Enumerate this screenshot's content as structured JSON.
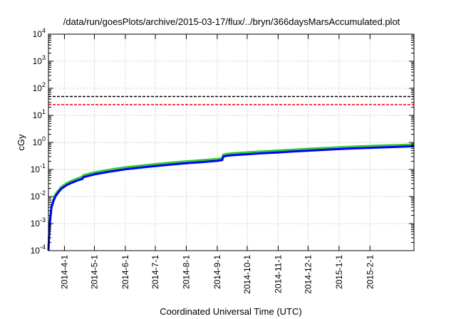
{
  "chart_data": {
    "type": "line",
    "title": "/data/run/goesPlots/archive/2015-03-17/flux/../bryn/366daysMarsAccumulated.plot",
    "xlabel": "Coordinated Universal Time (UTC)",
    "ylabel": "cGy",
    "y_scale": "log",
    "ylim": [
      0.0001,
      10000
    ],
    "xlim": [
      "2014-03-16",
      "2015-03-17"
    ],
    "grid": true,
    "y_ticks": [
      {
        "value": 0.0001,
        "base": "10",
        "exp": "-4"
      },
      {
        "value": 0.001,
        "base": "10",
        "exp": "-3"
      },
      {
        "value": 0.01,
        "base": "10",
        "exp": "-2"
      },
      {
        "value": 0.1,
        "base": "10",
        "exp": "-1"
      },
      {
        "value": 1,
        "base": "10",
        "exp": "0"
      },
      {
        "value": 10,
        "base": "10",
        "exp": "1"
      },
      {
        "value": 100,
        "base": "10",
        "exp": "2"
      },
      {
        "value": 1000,
        "base": "10",
        "exp": "3"
      },
      {
        "value": 10000,
        "base": "10",
        "exp": "4"
      }
    ],
    "x_ticks": [
      {
        "date": "2014-04-01",
        "label": "2014-4-1"
      },
      {
        "date": "2014-05-01",
        "label": "2014-5-1"
      },
      {
        "date": "2014-06-01",
        "label": "2014-6-1"
      },
      {
        "date": "2014-07-01",
        "label": "2014-7-1"
      },
      {
        "date": "2014-08-01",
        "label": "2014-8-1"
      },
      {
        "date": "2014-09-01",
        "label": "2014-9-1"
      },
      {
        "date": "2014-10-01",
        "label": "2014-10-1"
      },
      {
        "date": "2014-11-01",
        "label": "2014-11-1"
      },
      {
        "date": "2014-12-01",
        "label": "2014-12-1"
      },
      {
        "date": "2015-01-01",
        "label": "2015-1-1"
      },
      {
        "date": "2015-02-01",
        "label": "2015-2-1"
      }
    ],
    "reference_lines": [
      {
        "value": 50,
        "color": "#000000",
        "style": "dashed"
      },
      {
        "value": 25,
        "color": "#ff0000",
        "style": "dashed"
      }
    ],
    "series": [
      {
        "color": "#33cc33",
        "x": [
          "2014-03-16",
          "2014-03-17",
          "2014-03-18",
          "2014-03-19",
          "2014-03-21",
          "2014-03-23",
          "2014-03-26",
          "2014-03-29",
          "2014-04-03",
          "2014-04-08",
          "2014-04-14",
          "2014-04-19",
          "2014-04-20",
          "2014-05-01",
          "2014-05-16",
          "2014-06-01",
          "2014-06-16",
          "2014-07-01",
          "2014-07-16",
          "2014-08-01",
          "2014-08-16",
          "2014-09-01",
          "2014-09-06",
          "2014-09-07",
          "2014-09-10",
          "2014-09-16",
          "2014-10-01",
          "2014-10-16",
          "2014-11-01",
          "2014-11-16",
          "2014-12-01",
          "2014-12-16",
          "2015-01-01",
          "2015-01-16",
          "2015-02-01",
          "2015-02-16",
          "2015-03-01",
          "2015-03-17"
        ],
        "values": [
          0.0001,
          0.0008,
          0.002,
          0.0045,
          0.008,
          0.012,
          0.017,
          0.023,
          0.031,
          0.038,
          0.046,
          0.054,
          0.062,
          0.078,
          0.098,
          0.12,
          0.138,
          0.158,
          0.178,
          0.2,
          0.22,
          0.245,
          0.26,
          0.355,
          0.375,
          0.395,
          0.43,
          0.465,
          0.5,
          0.54,
          0.58,
          0.62,
          0.66,
          0.7,
          0.74,
          0.77,
          0.8,
          0.84
        ]
      },
      {
        "color": "#0000ff",
        "x": [
          "2014-03-16",
          "2014-03-17",
          "2014-03-18",
          "2014-03-19",
          "2014-03-21",
          "2014-03-23",
          "2014-03-26",
          "2014-03-29",
          "2014-04-03",
          "2014-04-08",
          "2014-04-14",
          "2014-04-19",
          "2014-04-20",
          "2014-05-01",
          "2014-05-16",
          "2014-06-01",
          "2014-06-16",
          "2014-07-01",
          "2014-07-16",
          "2014-08-01",
          "2014-08-16",
          "2014-09-01",
          "2014-09-06",
          "2014-09-07",
          "2014-09-10",
          "2014-09-16",
          "2014-10-01",
          "2014-10-16",
          "2014-11-01",
          "2014-11-16",
          "2014-12-01",
          "2014-12-16",
          "2015-01-01",
          "2015-01-16",
          "2015-02-01",
          "2015-02-16",
          "2015-03-01",
          "2015-03-17"
        ],
        "values": [
          0.0001,
          0.0007,
          0.0017,
          0.0038,
          0.0068,
          0.0102,
          0.0145,
          0.0195,
          0.026,
          0.032,
          0.039,
          0.045,
          0.052,
          0.066,
          0.083,
          0.101,
          0.117,
          0.134,
          0.151,
          0.17,
          0.187,
          0.208,
          0.222,
          0.3,
          0.318,
          0.335,
          0.365,
          0.395,
          0.425,
          0.46,
          0.495,
          0.53,
          0.565,
          0.6,
          0.63,
          0.66,
          0.685,
          0.72
        ]
      }
    ]
  }
}
